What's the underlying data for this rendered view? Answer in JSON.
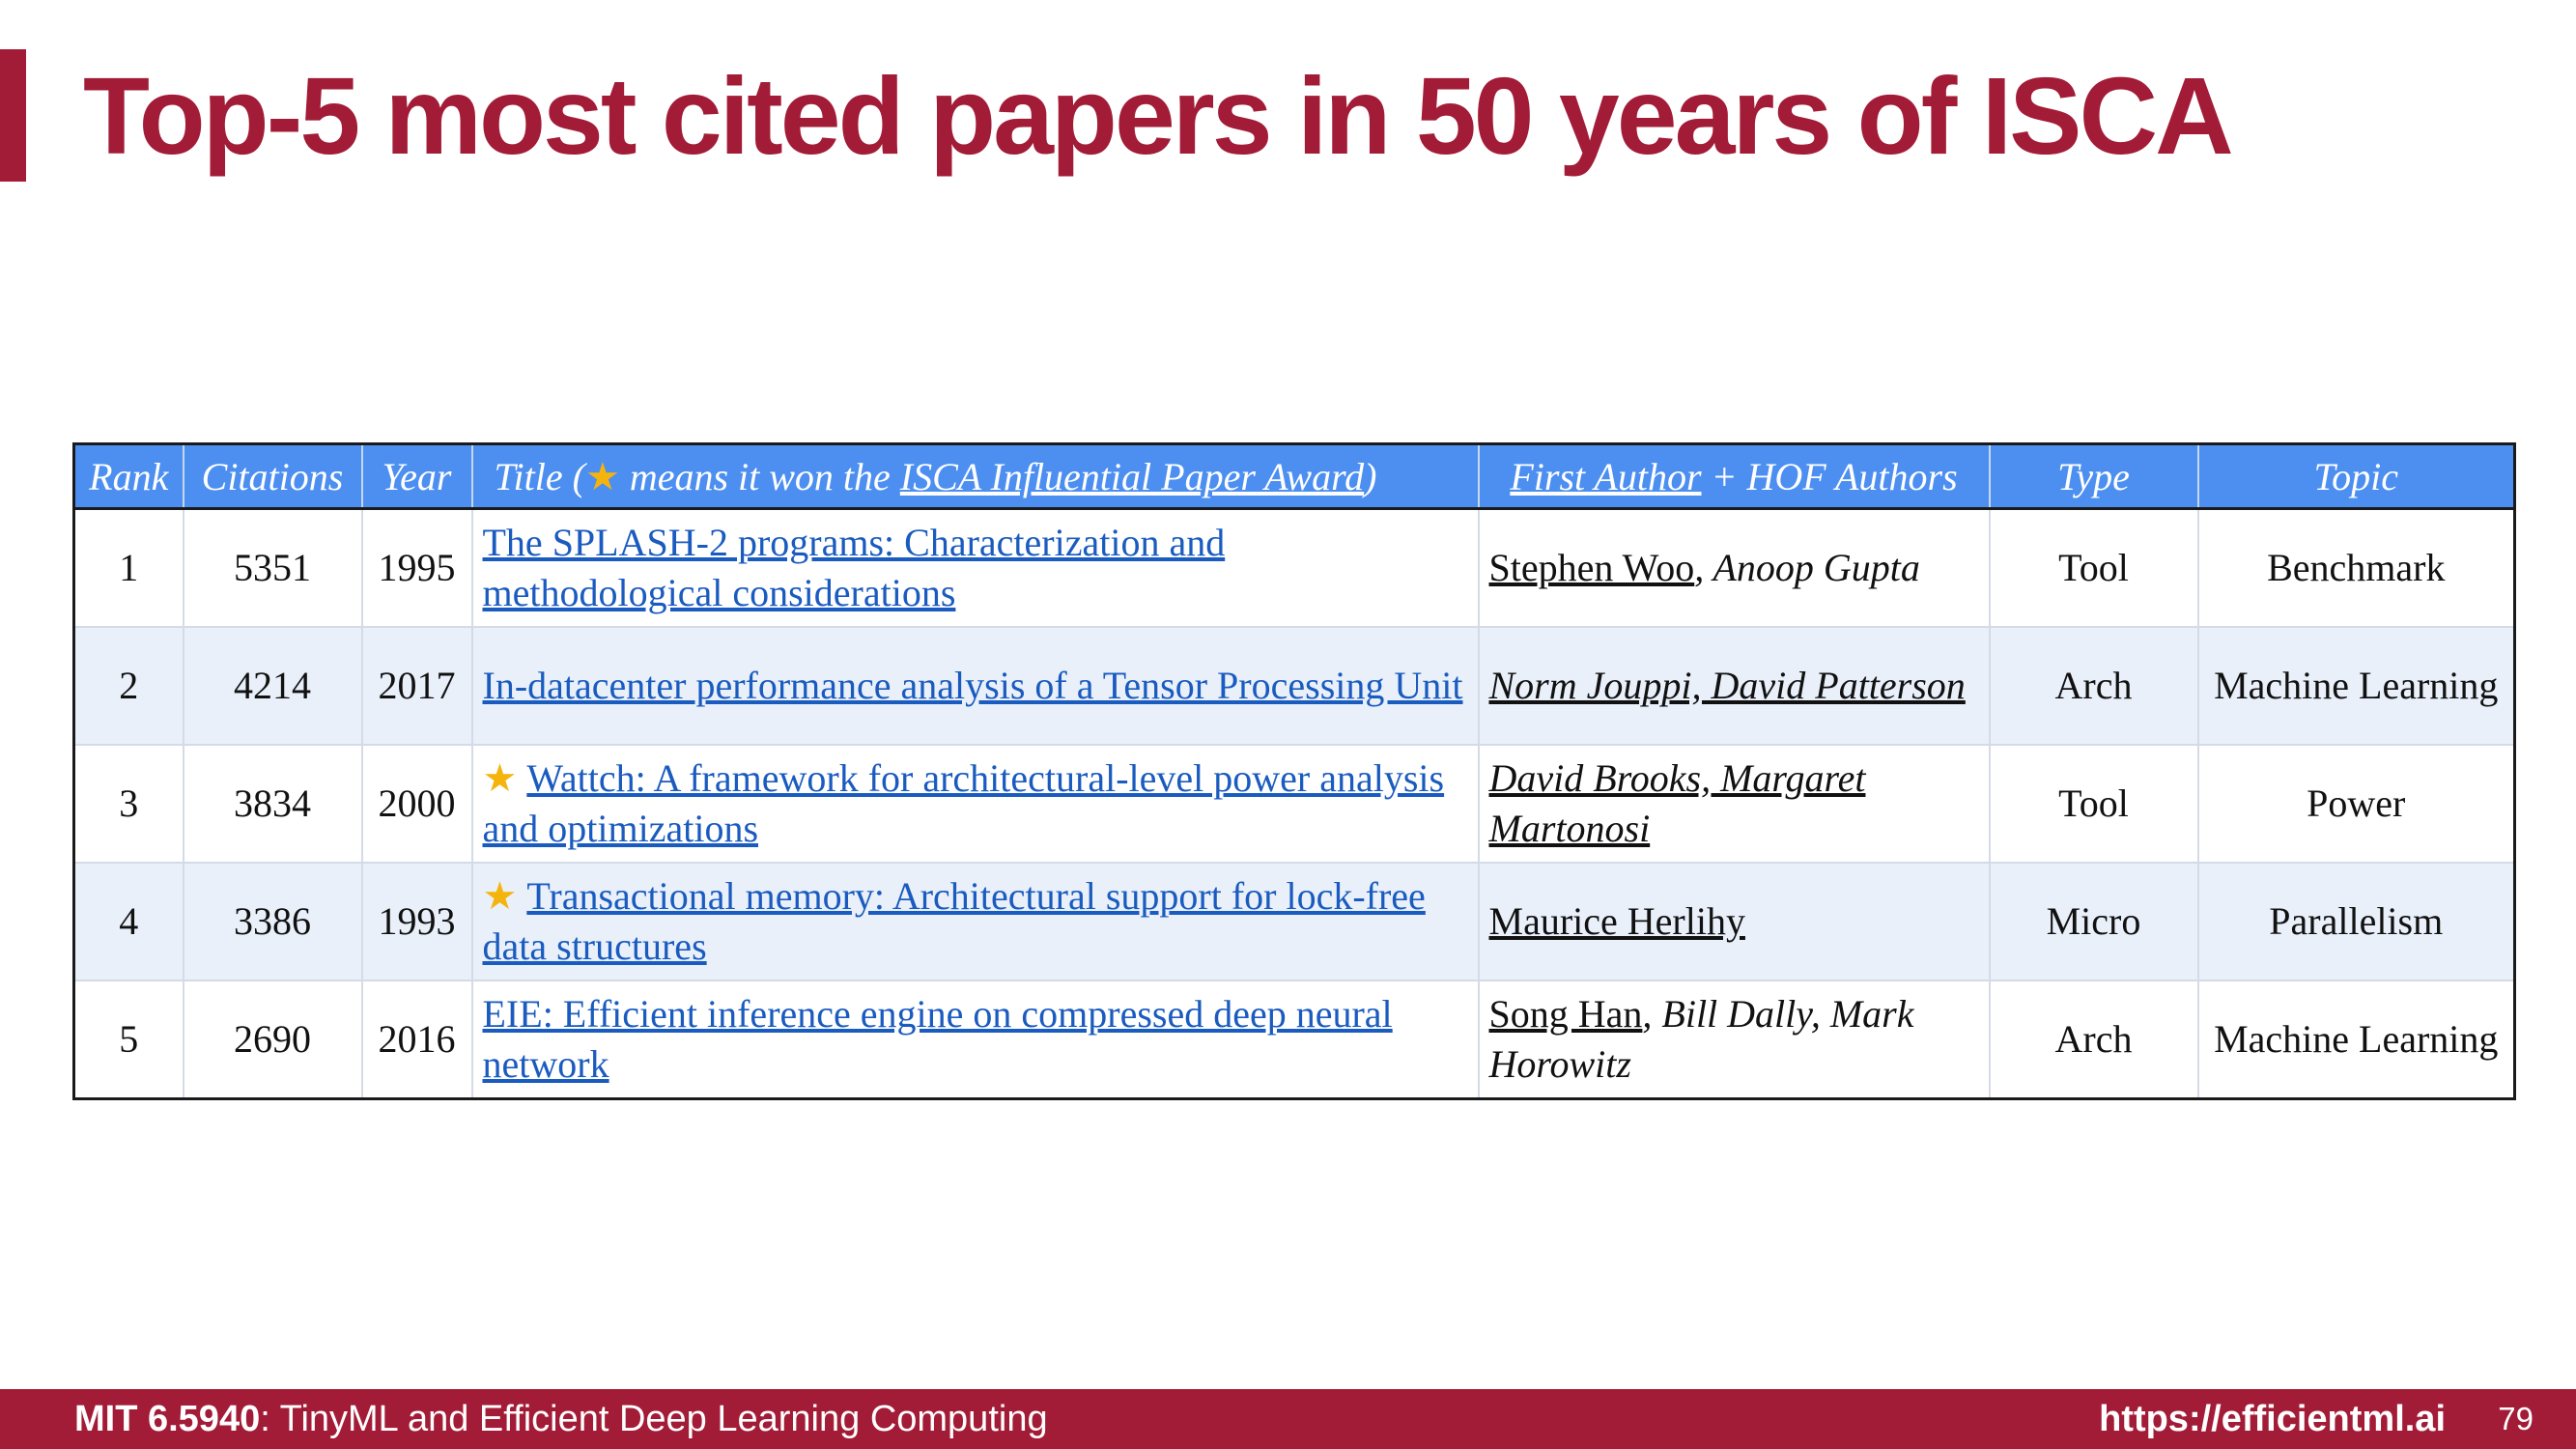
{
  "title": "Top-5 most cited papers in 50 years of ISCA",
  "table": {
    "headers": {
      "rank": "Rank",
      "citations": "Citations",
      "year": "Year",
      "title_prefix": "Title (",
      "star": "★",
      "title_mid": " means it won the ",
      "award_link": "ISCA Influential Paper Award",
      "title_suffix": ")",
      "first_author": "First Author",
      "hof_authors": " + HOF Authors",
      "type": "Type",
      "topic": "Topic"
    },
    "rows": [
      {
        "rank": "1",
        "citations": "5351",
        "year": "1995",
        "star": "",
        "title": "The SPLASH-2 programs: Characterization and methodological considerations",
        "first_author": "Stephen Woo",
        "hof_authors": ", Anoop Gupta",
        "type": "Tool",
        "topic": "Benchmark"
      },
      {
        "rank": "2",
        "citations": "4214",
        "year": "2017",
        "star": "",
        "title": "In-datacenter performance analysis of a Tensor Processing Unit",
        "first_author": "Norm Jouppi, David Patterson",
        "hof_authors": "",
        "type": "Arch",
        "topic": "Machine Learning"
      },
      {
        "rank": "3",
        "citations": "3834",
        "year": "2000",
        "star": "★",
        "title": "Wattch: A framework for architectural-level power analysis and optimizations",
        "first_author": "David Brooks, Margaret Martonosi",
        "hof_authors": "",
        "type": "Tool",
        "topic": "Power"
      },
      {
        "rank": "4",
        "citations": "3386",
        "year": "1993",
        "star": "★",
        "title": "Transactional memory: Architectural support for lock-free data structures",
        "first_author": "Maurice Herlihy",
        "hof_authors": "",
        "type": "Micro",
        "topic": "Parallelism"
      },
      {
        "rank": "5",
        "citations": "2690",
        "year": "2016",
        "star": "",
        "title": "EIE: Efficient inference engine on compressed deep neural network",
        "first_author": "Song Han",
        "hof_authors": ", Bill Dally, Mark Horowitz",
        "type": "Arch",
        "topic": "Machine Learning"
      }
    ]
  },
  "footer": {
    "course_code": "MIT 6.5940",
    "course_name": ": TinyML and Efficient Deep Learning Computing",
    "url": "https://efficientml.ai",
    "page": "79"
  },
  "colors": {
    "brand": "#a31c37",
    "header_blue": "#4d8ff0",
    "link_blue": "#1a5bbf",
    "star_gold": "#f5b40c",
    "alt_row": "#e9f0fa"
  }
}
